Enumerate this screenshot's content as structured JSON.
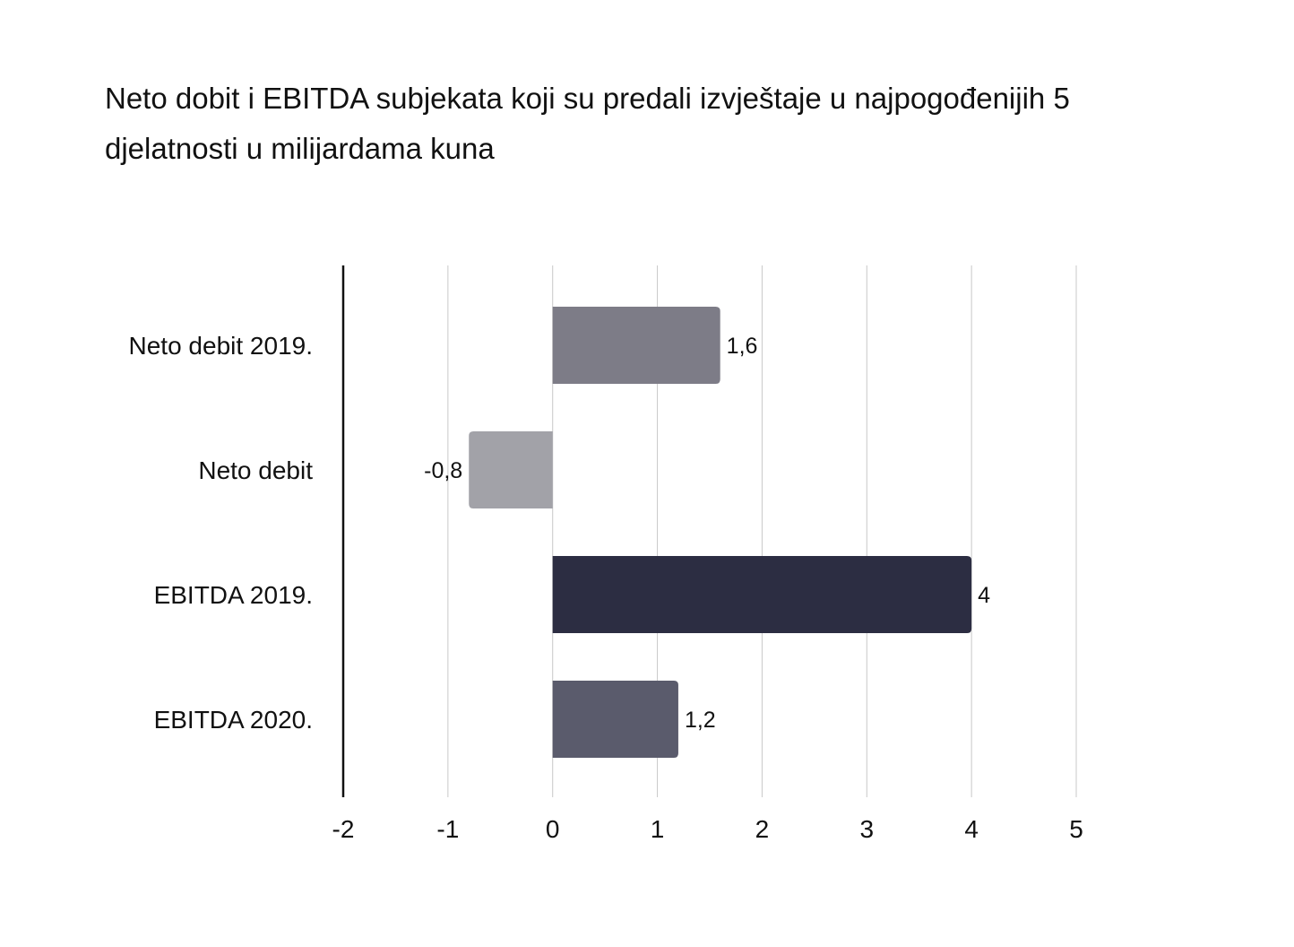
{
  "chart_data": {
    "type": "bar",
    "orientation": "horizontal",
    "title": "Neto dobit i EBITDA subjekata koji su predali izvještaje u najpogođenijih 5 djelatnosti u milijardama kuna",
    "categories": [
      "Neto debit 2019.",
      "Neto debit",
      "EBITDA 2019.",
      "EBITDA 2020."
    ],
    "values": [
      1.6,
      -0.8,
      4,
      1.2
    ],
    "value_labels": [
      "1,6",
      "-0,8",
      "4",
      "1,2"
    ],
    "bar_colors": [
      "#7d7c87",
      "#a2a2a8",
      "#2c2d42",
      "#5a5b6c"
    ],
    "xlim": [
      -2,
      5
    ],
    "x_ticks": [
      -2,
      -1,
      0,
      1,
      2,
      3,
      4,
      5
    ],
    "x_tick_labels": [
      "-2",
      "-1",
      "0",
      "1",
      "2",
      "3",
      "4",
      "5"
    ],
    "xlabel": "",
    "ylabel": "",
    "grid": true,
    "legend": "none"
  },
  "colors": {
    "gridline": "#c8c8c8",
    "axis": "#111111",
    "text": "#111111"
  }
}
